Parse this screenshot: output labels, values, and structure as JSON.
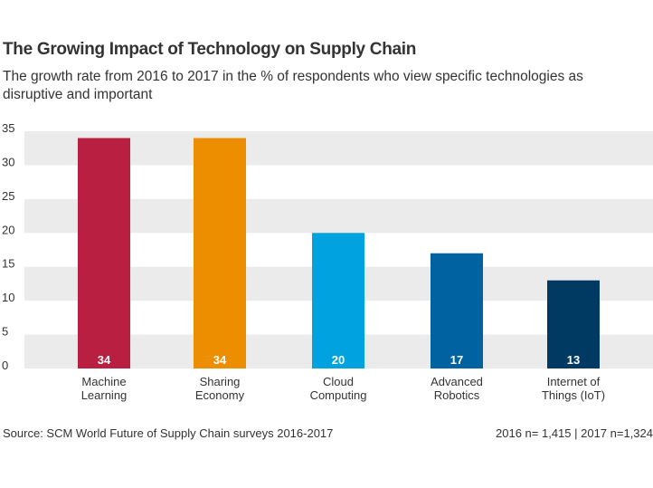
{
  "title": "The Growing Impact of Technology on Supply Chain",
  "subtitle": "The growth rate from 2016 to 2017 in the % of respondents who view specific technologies as disruptive and important",
  "source": "Source: SCM World Future of Supply Chain surveys 2016-2017",
  "sample_note": "2016 n= 1,415 | 2017 n=1,324",
  "chart_data": {
    "type": "bar",
    "categories": [
      [
        "Machine",
        "Learning"
      ],
      [
        "Sharing",
        "Economy"
      ],
      [
        "Cloud",
        "Computing"
      ],
      [
        "Advanced",
        "Robotics"
      ],
      [
        "Internet of",
        "Things (IoT)"
      ]
    ],
    "values": [
      34,
      34,
      20,
      17,
      13
    ],
    "colors": [
      "#b81f40",
      "#ec8e00",
      "#00a3e0",
      "#0062a0",
      "#003a63"
    ],
    "ylim": [
      0,
      35
    ],
    "yticks": [
      0,
      5,
      10,
      15,
      20,
      25,
      30,
      35
    ],
    "grid": "alternating horizontal bands",
    "band_color": "#ebebeb"
  }
}
